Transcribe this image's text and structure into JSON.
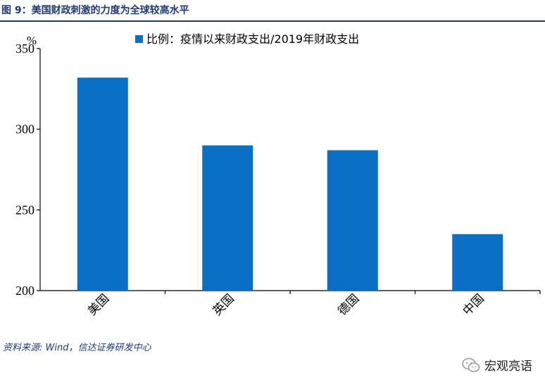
{
  "figure_title": "图 9：美国财政刺激的力度为全球较高水平",
  "source_note": "资料来源: Wind，信达证券研发中心",
  "watermark_text": "宏观亮语",
  "colors": {
    "bar": "#0b6fc6",
    "title": "#1f3a7a"
  },
  "chart_data": {
    "type": "bar",
    "title": "",
    "xlabel": "",
    "ylabel": "%",
    "categories": [
      "美国",
      "英国",
      "德国",
      "中国"
    ],
    "series": [
      {
        "name": "比例：疫情以来财政支出/2019年财政支出",
        "values": [
          332,
          290,
          287,
          235
        ]
      }
    ],
    "ylim": [
      200,
      350
    ],
    "yticks": [
      200,
      250,
      300,
      350
    ],
    "grid": false,
    "legend": "top"
  }
}
